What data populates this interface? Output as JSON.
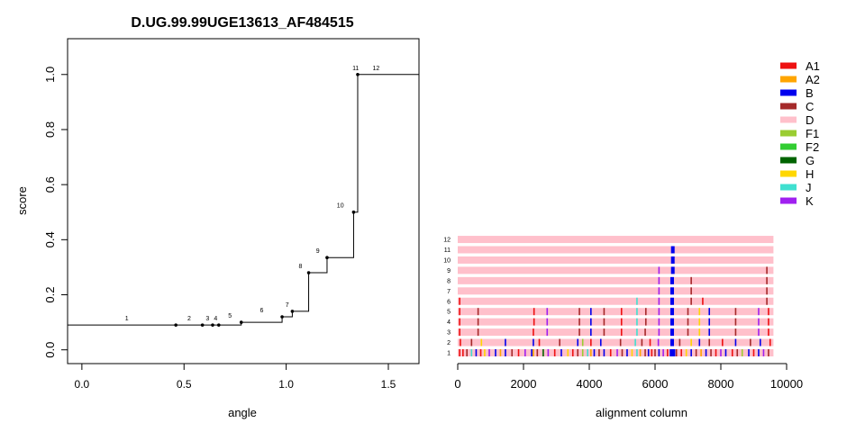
{
  "chart_data": [
    {
      "type": "line",
      "title": "D.UG.99.99UGE13613_AF484515",
      "xlabel": "angle",
      "ylabel": "score",
      "xlim": [
        -0.07,
        1.65
      ],
      "ylim": [
        -0.05,
        1.13
      ],
      "x_ticks": [
        0,
        0.5,
        1,
        1.5
      ],
      "x_tick_labels": [
        "0.0",
        "0.5",
        "1.0",
        "1.5"
      ],
      "y_ticks": [
        0,
        0.2,
        0.4,
        0.6,
        0.8,
        1.0
      ],
      "y_tick_labels": [
        "0.0",
        "0.2",
        "0.4",
        "0.6",
        "0.8",
        "1.0"
      ],
      "step_start_x": -0.07,
      "step_end_x": 1.65,
      "step_start_y": 0.09,
      "points": [
        {
          "label": "1",
          "x": 0.46,
          "y": 0.09
        },
        {
          "label": "2",
          "x": 0.59,
          "y": 0.09
        },
        {
          "label": "3",
          "x": 0.64,
          "y": 0.09
        },
        {
          "label": "4",
          "x": 0.67,
          "y": 0.09
        },
        {
          "label": "5",
          "x": 0.78,
          "y": 0.1
        },
        {
          "label": "6",
          "x": 0.98,
          "y": 0.12
        },
        {
          "label": "7",
          "x": 1.03,
          "y": 0.14
        },
        {
          "label": "8",
          "x": 1.11,
          "y": 0.28
        },
        {
          "label": "9",
          "x": 1.2,
          "y": 0.335
        },
        {
          "label": "10",
          "x": 1.33,
          "y": 0.5
        },
        {
          "label": "11",
          "x": 1.35,
          "y": 1.0
        },
        {
          "label": "12",
          "x": 1.65,
          "y": 1.0
        }
      ]
    },
    {
      "type": "heatmap",
      "xlabel": "alignment column",
      "xlim": [
        0,
        10000
      ],
      "x_ticks": [
        0,
        2000,
        4000,
        6000,
        8000,
        10000
      ],
      "x_tick_labels": [
        "0",
        "2000",
        "4000",
        "6000",
        "8000",
        "10000"
      ],
      "alignment_length": 9600,
      "base_subtype": "D",
      "rows": [
        {
          "label": "1",
          "marks": [
            {
              "pos": 60,
              "subtype": "A1"
            },
            {
              "pos": 160,
              "subtype": "A1"
            },
            {
              "pos": 280,
              "subtype": "C"
            },
            {
              "pos": 420,
              "subtype": "J"
            },
            {
              "pos": 560,
              "subtype": "B"
            },
            {
              "pos": 700,
              "subtype": "A1"
            },
            {
              "pos": 820,
              "subtype": "H"
            },
            {
              "pos": 960,
              "subtype": "K"
            },
            {
              "pos": 1150,
              "subtype": "B"
            },
            {
              "pos": 1300,
              "subtype": "A2"
            },
            {
              "pos": 1450,
              "subtype": "B"
            },
            {
              "pos": 1650,
              "subtype": "C"
            },
            {
              "pos": 1850,
              "subtype": "A1"
            },
            {
              "pos": 2050,
              "subtype": "K"
            },
            {
              "pos": 2250,
              "subtype": "B"
            },
            {
              "pos": 2300,
              "subtype": "A2"
            },
            {
              "pos": 2420,
              "subtype": "C"
            },
            {
              "pos": 2600,
              "subtype": "G"
            },
            {
              "pos": 2750,
              "subtype": "K"
            },
            {
              "pos": 2950,
              "subtype": "A1"
            },
            {
              "pos": 3150,
              "subtype": "B"
            },
            {
              "pos": 3350,
              "subtype": "H"
            },
            {
              "pos": 3500,
              "subtype": "A1"
            },
            {
              "pos": 3650,
              "subtype": "C"
            },
            {
              "pos": 3800,
              "subtype": "F1"
            },
            {
              "pos": 3950,
              "subtype": "J"
            },
            {
              "pos": 4050,
              "subtype": "A2"
            },
            {
              "pos": 4150,
              "subtype": "B"
            },
            {
              "pos": 4300,
              "subtype": "C"
            },
            {
              "pos": 4450,
              "subtype": "B"
            },
            {
              "pos": 4650,
              "subtype": "A1"
            },
            {
              "pos": 4850,
              "subtype": "K"
            },
            {
              "pos": 5000,
              "subtype": "C"
            },
            {
              "pos": 5150,
              "subtype": "B"
            },
            {
              "pos": 5300,
              "subtype": "H"
            },
            {
              "pos": 5450,
              "subtype": "J"
            },
            {
              "pos": 5550,
              "subtype": "A2"
            },
            {
              "pos": 5700,
              "subtype": "C"
            },
            {
              "pos": 5800,
              "subtype": "B"
            },
            {
              "pos": 5900,
              "subtype": "A1"
            },
            {
              "pos": 6000,
              "subtype": "C"
            },
            {
              "pos": 6120,
              "subtype": "B"
            },
            {
              "pos": 6250,
              "subtype": "K"
            },
            {
              "pos": 6380,
              "subtype": "A1"
            },
            {
              "pos": 6500,
              "subtype": "B"
            },
            {
              "pos": 6560,
              "subtype": "B"
            },
            {
              "pos": 6650,
              "subtype": "C"
            },
            {
              "pos": 6800,
              "subtype": "A1"
            },
            {
              "pos": 6950,
              "subtype": "H"
            },
            {
              "pos": 7100,
              "subtype": "B"
            },
            {
              "pos": 7250,
              "subtype": "C"
            },
            {
              "pos": 7400,
              "subtype": "A2"
            },
            {
              "pos": 7550,
              "subtype": "B"
            },
            {
              "pos": 7700,
              "subtype": "C"
            },
            {
              "pos": 7850,
              "subtype": "A1"
            },
            {
              "pos": 8000,
              "subtype": "K"
            },
            {
              "pos": 8150,
              "subtype": "B"
            },
            {
              "pos": 8350,
              "subtype": "A1"
            },
            {
              "pos": 8500,
              "subtype": "C"
            },
            {
              "pos": 8650,
              "subtype": "F1"
            },
            {
              "pos": 8850,
              "subtype": "B"
            },
            {
              "pos": 9000,
              "subtype": "A1"
            },
            {
              "pos": 9150,
              "subtype": "B"
            },
            {
              "pos": 9300,
              "subtype": "K"
            },
            {
              "pos": 9450,
              "subtype": "C"
            }
          ]
        },
        {
          "label": "2",
          "marks": [
            {
              "pos": 80,
              "subtype": "A1"
            },
            {
              "pos": 420,
              "subtype": "C"
            },
            {
              "pos": 720,
              "subtype": "H"
            },
            {
              "pos": 1450,
              "subtype": "B"
            },
            {
              "pos": 2300,
              "subtype": "B"
            },
            {
              "pos": 2480,
              "subtype": "A1"
            },
            {
              "pos": 3100,
              "subtype": "C"
            },
            {
              "pos": 3650,
              "subtype": "B"
            },
            {
              "pos": 3800,
              "subtype": "F1"
            },
            {
              "pos": 4050,
              "subtype": "A1"
            },
            {
              "pos": 4350,
              "subtype": "B"
            },
            {
              "pos": 4950,
              "subtype": "C"
            },
            {
              "pos": 5400,
              "subtype": "J"
            },
            {
              "pos": 5600,
              "subtype": "C"
            },
            {
              "pos": 5850,
              "subtype": "A1"
            },
            {
              "pos": 6100,
              "subtype": "K"
            },
            {
              "pos": 6520,
              "subtype": "B"
            },
            {
              "pos": 6750,
              "subtype": "C"
            },
            {
              "pos": 7100,
              "subtype": "H"
            },
            {
              "pos": 7350,
              "subtype": "B"
            },
            {
              "pos": 7650,
              "subtype": "C"
            },
            {
              "pos": 8050,
              "subtype": "A1"
            },
            {
              "pos": 8450,
              "subtype": "B"
            },
            {
              "pos": 8900,
              "subtype": "C"
            },
            {
              "pos": 9200,
              "subtype": "B"
            },
            {
              "pos": 9500,
              "subtype": "A1"
            }
          ]
        },
        {
          "label": "3",
          "marks": [
            {
              "pos": 60,
              "subtype": "A1"
            },
            {
              "pos": 620,
              "subtype": "C"
            },
            {
              "pos": 2300,
              "subtype": "A1"
            },
            {
              "pos": 2720,
              "subtype": "K"
            },
            {
              "pos": 3700,
              "subtype": "C"
            },
            {
              "pos": 4050,
              "subtype": "B"
            },
            {
              "pos": 4450,
              "subtype": "C"
            },
            {
              "pos": 4980,
              "subtype": "A1"
            },
            {
              "pos": 5450,
              "subtype": "J"
            },
            {
              "pos": 5700,
              "subtype": "C"
            },
            {
              "pos": 6120,
              "subtype": "K"
            },
            {
              "pos": 6520,
              "subtype": "B"
            },
            {
              "pos": 7000,
              "subtype": "C"
            },
            {
              "pos": 7350,
              "subtype": "H"
            },
            {
              "pos": 7650,
              "subtype": "B"
            },
            {
              "pos": 8450,
              "subtype": "C"
            },
            {
              "pos": 9150,
              "subtype": "K"
            },
            {
              "pos": 9450,
              "subtype": "A1"
            }
          ]
        },
        {
          "label": "4",
          "marks": [
            {
              "pos": 60,
              "subtype": "A1"
            },
            {
              "pos": 620,
              "subtype": "C"
            },
            {
              "pos": 2320,
              "subtype": "A1"
            },
            {
              "pos": 2720,
              "subtype": "K"
            },
            {
              "pos": 3700,
              "subtype": "C"
            },
            {
              "pos": 4050,
              "subtype": "B"
            },
            {
              "pos": 4450,
              "subtype": "C"
            },
            {
              "pos": 4980,
              "subtype": "A1"
            },
            {
              "pos": 5450,
              "subtype": "J"
            },
            {
              "pos": 5720,
              "subtype": "C"
            },
            {
              "pos": 6120,
              "subtype": "K"
            },
            {
              "pos": 6520,
              "subtype": "B"
            },
            {
              "pos": 7000,
              "subtype": "C"
            },
            {
              "pos": 7350,
              "subtype": "H"
            },
            {
              "pos": 7650,
              "subtype": "B"
            },
            {
              "pos": 8450,
              "subtype": "C"
            },
            {
              "pos": 9150,
              "subtype": "K"
            },
            {
              "pos": 9450,
              "subtype": "A1"
            }
          ]
        },
        {
          "label": "5",
          "marks": [
            {
              "pos": 60,
              "subtype": "A1"
            },
            {
              "pos": 620,
              "subtype": "C"
            },
            {
              "pos": 2320,
              "subtype": "A1"
            },
            {
              "pos": 2720,
              "subtype": "K"
            },
            {
              "pos": 3700,
              "subtype": "C"
            },
            {
              "pos": 4050,
              "subtype": "B"
            },
            {
              "pos": 4450,
              "subtype": "C"
            },
            {
              "pos": 4980,
              "subtype": "A1"
            },
            {
              "pos": 5450,
              "subtype": "J"
            },
            {
              "pos": 5720,
              "subtype": "C"
            },
            {
              "pos": 6120,
              "subtype": "K"
            },
            {
              "pos": 6520,
              "subtype": "B"
            },
            {
              "pos": 7000,
              "subtype": "C"
            },
            {
              "pos": 7350,
              "subtype": "H"
            },
            {
              "pos": 7650,
              "subtype": "B"
            },
            {
              "pos": 8450,
              "subtype": "C"
            },
            {
              "pos": 9150,
              "subtype": "K"
            },
            {
              "pos": 9450,
              "subtype": "A1"
            }
          ]
        },
        {
          "label": "6",
          "marks": [
            {
              "pos": 60,
              "subtype": "A1"
            },
            {
              "pos": 5450,
              "subtype": "J"
            },
            {
              "pos": 6120,
              "subtype": "K"
            },
            {
              "pos": 6520,
              "subtype": "B"
            },
            {
              "pos": 7100,
              "subtype": "C"
            },
            {
              "pos": 7450,
              "subtype": "A1"
            },
            {
              "pos": 9400,
              "subtype": "C"
            }
          ]
        },
        {
          "label": "7",
          "marks": [
            {
              "pos": 6120,
              "subtype": "K"
            },
            {
              "pos": 6520,
              "subtype": "B"
            },
            {
              "pos": 7100,
              "subtype": "C"
            },
            {
              "pos": 9400,
              "subtype": "C"
            }
          ]
        },
        {
          "label": "8",
          "marks": [
            {
              "pos": 6120,
              "subtype": "K"
            },
            {
              "pos": 6520,
              "subtype": "B"
            },
            {
              "pos": 7100,
              "subtype": "C"
            },
            {
              "pos": 9400,
              "subtype": "C"
            }
          ]
        },
        {
          "label": "9",
          "marks": [
            {
              "pos": 6120,
              "subtype": "K"
            },
            {
              "pos": 6540,
              "subtype": "B"
            },
            {
              "pos": 9400,
              "subtype": "C"
            }
          ]
        },
        {
          "label": "10",
          "marks": [
            {
              "pos": 6540,
              "subtype": "B"
            }
          ]
        },
        {
          "label": "11",
          "marks": [
            {
              "pos": 6540,
              "subtype": "B"
            }
          ]
        },
        {
          "label": "12",
          "marks": []
        }
      ],
      "legend": [
        {
          "name": "A1",
          "color": "#ee1111"
        },
        {
          "name": "A2",
          "color": "#ffa500"
        },
        {
          "name": "B",
          "color": "#0000ee"
        },
        {
          "name": "C",
          "color": "#a52a2a"
        },
        {
          "name": "D",
          "color": "#ffc0cb"
        },
        {
          "name": "F1",
          "color": "#9acd32"
        },
        {
          "name": "F2",
          "color": "#32cd32"
        },
        {
          "name": "G",
          "color": "#006400"
        },
        {
          "name": "H",
          "color": "#ffd700"
        },
        {
          "name": "J",
          "color": "#40e0d0"
        },
        {
          "name": "K",
          "color": "#a020f0"
        }
      ]
    }
  ]
}
